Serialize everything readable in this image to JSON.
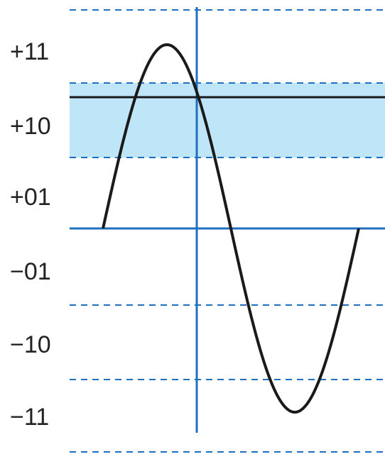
{
  "diagram": {
    "level_labels": [
      "+11",
      "+10",
      "+01",
      "−01",
      "−10",
      "−11"
    ],
    "colors": {
      "axis_blue": "#1f6fc0",
      "band_fill": "#bfe6f8",
      "curve": "#1a1a1a",
      "threshold_line": "#1a1a1a"
    },
    "highlighted_band": "+10",
    "curve": "sine",
    "grid_style": "dashed"
  }
}
